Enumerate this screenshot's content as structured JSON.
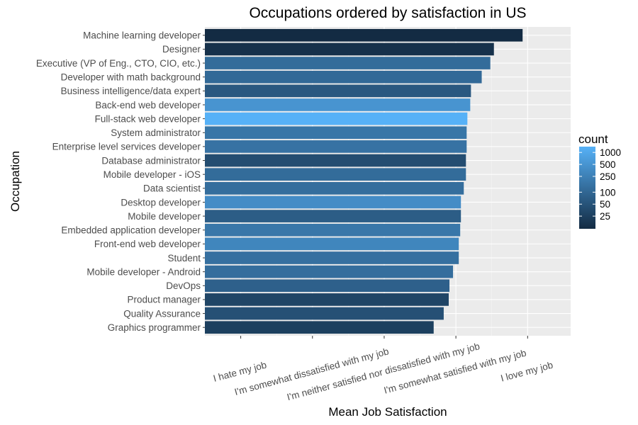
{
  "chart_data": {
    "type": "bar",
    "orientation": "horizontal",
    "title": "Occupations ordered by satisfaction in US",
    "xlabel": "Mean Job Satisfaction",
    "ylabel": "Occupation",
    "xlim": [
      0.5,
      5.6
    ],
    "x_ticks": [
      {
        "value": 1,
        "label": "I hate my job"
      },
      {
        "value": 2,
        "label": "I'm somewhat dissatisfied with my job"
      },
      {
        "value": 3,
        "label": "I'm neither satisfied nor dissatisfied with my job"
      },
      {
        "value": 4,
        "label": "I'm somewhat satisfied with my job"
      },
      {
        "value": 5,
        "label": "I love my job"
      }
    ],
    "grid": true,
    "categories": [
      "Machine learning developer",
      "Designer",
      "Executive (VP of Eng., CTO, CIO, etc.)",
      "Developer with math background",
      "Business intelligence/data expert",
      "Back-end web developer",
      "Full-stack web developer",
      "System administrator",
      "Enterprise level services developer",
      "Database administrator",
      "Mobile developer - iOS",
      "Data scientist",
      "Desktop developer",
      "Mobile developer",
      "Embedded application developer",
      "Front-end web developer",
      "Student",
      "Mobile developer - Android",
      "DevOps",
      "Product manager",
      "Quality Assurance",
      "Graphics programmer"
    ],
    "values": [
      4.93,
      4.53,
      4.48,
      4.36,
      4.21,
      4.2,
      4.16,
      4.15,
      4.15,
      4.14,
      4.14,
      4.11,
      4.07,
      4.07,
      4.06,
      4.04,
      4.04,
      3.96,
      3.91,
      3.9,
      3.83,
      3.69
    ],
    "counts": [
      12,
      15,
      120,
      110,
      60,
      500,
      1400,
      170,
      150,
      40,
      120,
      130,
      380,
      70,
      180,
      300,
      140,
      130,
      80,
      30,
      45,
      25
    ],
    "legend": {
      "title": "count",
      "position": "right",
      "breaks": [
        1000,
        500,
        250,
        100,
        50,
        25
      ],
      "color_low": "#132b43",
      "color_high": "#56b1f7"
    },
    "colors": {
      "panel_background": "#ebebeb",
      "grid_major": "#ffffff",
      "grid_minor": "#f5f5f5"
    }
  }
}
